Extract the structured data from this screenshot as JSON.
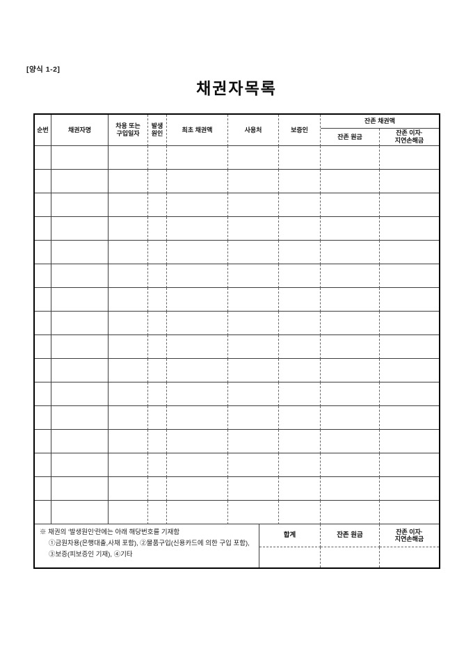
{
  "form": {
    "code": "[양식 1-2]",
    "title": "채권자목록"
  },
  "table": {
    "header": {
      "seq": "순번",
      "creditor": "채권자명",
      "date_l1": "차용 또는",
      "date_l2": "구입일자",
      "cause_l1": "발생",
      "cause_l2": "원인",
      "initial_amount": "최초 채권액",
      "usage": "사용처",
      "guarantor": "보증인",
      "remaining_group": "잔존 채권액",
      "remaining_principal": "잔존 원금",
      "remaining_interest_l1": "잔존 이자·",
      "remaining_interest_l2": "지연손해금"
    },
    "body_rows": 16,
    "columns": 9
  },
  "footer": {
    "note_l1": "※ 채권의 '발생원인'란에는 아래 해당번호를 기재함",
    "note_l2": "①금원차용(은행대출,사채 포함), ②물품구입(신용카드에 의한 구입 포함),",
    "note_l3": "③보증(피보증인 기재), ④기타",
    "total_label": "합계",
    "principal_label": "잔존 원금",
    "interest_l1": "잔존 이자·",
    "interest_l2": "지연손해금"
  }
}
